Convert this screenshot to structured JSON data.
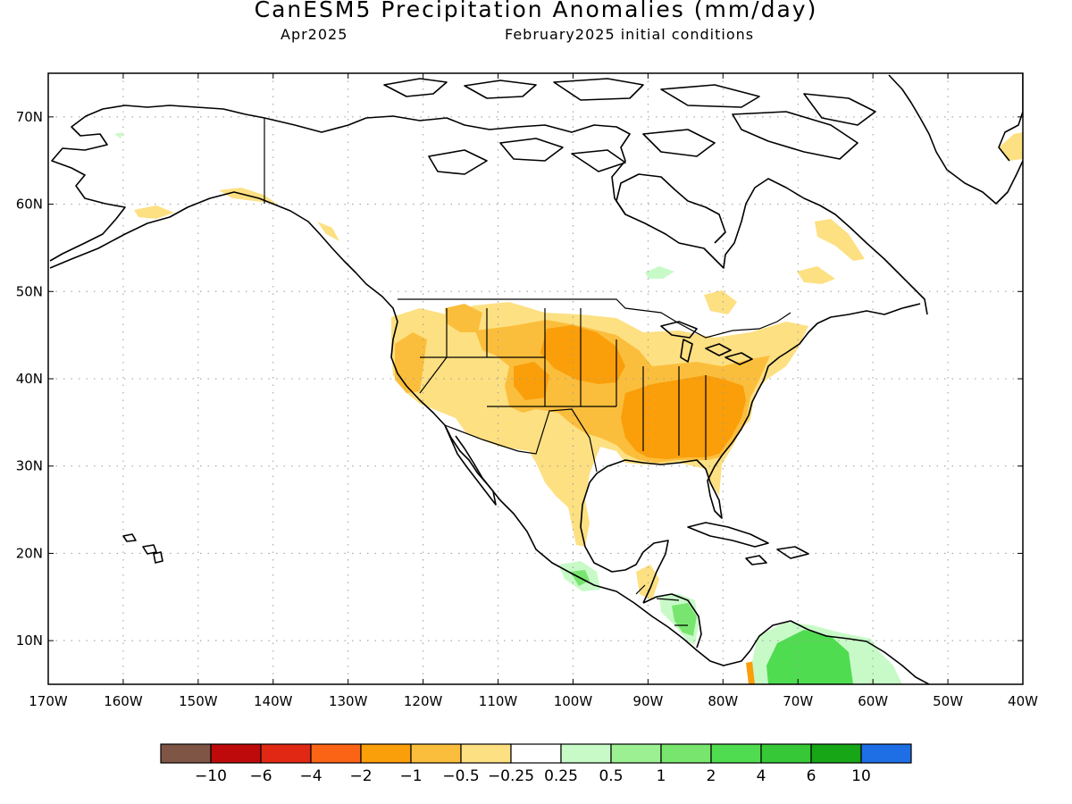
{
  "header": {
    "title": "CanESM5 Precipitation Anomalies (mm/day)",
    "valid_month": "Apr2025",
    "initial_conditions": "February2025 initial conditions"
  },
  "axes": {
    "lon_labels": [
      "170W",
      "160W",
      "150W",
      "140W",
      "130W",
      "120W",
      "110W",
      "100W",
      "90W",
      "80W",
      "70W",
      "60W",
      "50W",
      "40W"
    ],
    "lat_labels": [
      "10N",
      "20N",
      "30N",
      "40N",
      "50N",
      "60N",
      "70N"
    ],
    "lon_range": [
      -170,
      -40
    ],
    "lat_range": [
      5,
      75
    ],
    "grid": true
  },
  "colorbar": {
    "colors": [
      "#7f5645",
      "#be0a0a",
      "#e12814",
      "#fa6414",
      "#fa9e0a",
      "#fbbe3c",
      "#fde082",
      "#ffffff",
      "#c8fac8",
      "#9cf092",
      "#78e66e",
      "#50dc50",
      "#37c837",
      "#16a616",
      "#1e6ee6"
    ],
    "labels": [
      "−10",
      "−6",
      "−4",
      "−2",
      "−1",
      "−0.5",
      "−0.25",
      "0.25",
      "0.5",
      "1",
      "2",
      "4",
      "6",
      "10"
    ]
  },
  "regions": {
    "dry_light_color": "#fde082",
    "dry_mid_color": "#fbbe3c",
    "dry_strong_color": "#fa9e0a",
    "wet_light_color": "#c8fac8",
    "wet_mid_color": "#78e66e",
    "wet_strong_color": "#50dc50"
  }
}
